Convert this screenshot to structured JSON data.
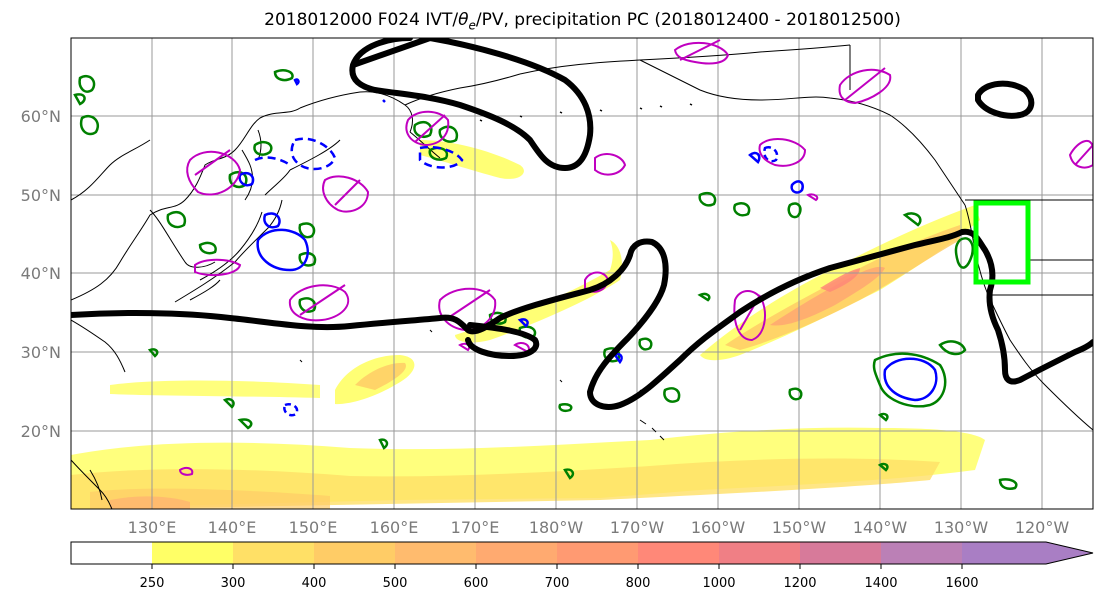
{
  "title": {
    "prefix": "2018012000 F024 IVT/",
    "theta": "θ",
    "theta_sub": "e",
    "suffix": "/PV, precipitation PC (2018012400 - 2018012500)"
  },
  "lat_labels": [
    "60°N",
    "50°N",
    "40°N",
    "30°N",
    "20°N"
  ],
  "lon_labels": [
    "130°E",
    "140°E",
    "150°E",
    "160°E",
    "170°E",
    "180°W",
    "170°W",
    "160°W",
    "150°W",
    "140°W",
    "130°W",
    "120°W"
  ],
  "colorbar": {
    "ticks": [
      "250",
      "300",
      "400",
      "500",
      "600",
      "700",
      "800",
      "1000",
      "1200",
      "1400",
      "1600"
    ],
    "colors": [
      "#ffff66",
      "#ffe066",
      "#ffcc66",
      "#ffbb6e",
      "#ffaa70",
      "#ff9a72",
      "#ff8878",
      "#f07f85",
      "#d77a9a",
      "#bb80b6",
      "#a97ec4"
    ]
  },
  "colors": {
    "ivt_contour": "#000000",
    "theta_e_contour": "#008000",
    "pv_contour_pos": "#0000ff",
    "precip_pc_contour": "#c000c0",
    "target_box": "#00ff00",
    "coastline": "#000000",
    "grid": "#999999"
  }
}
